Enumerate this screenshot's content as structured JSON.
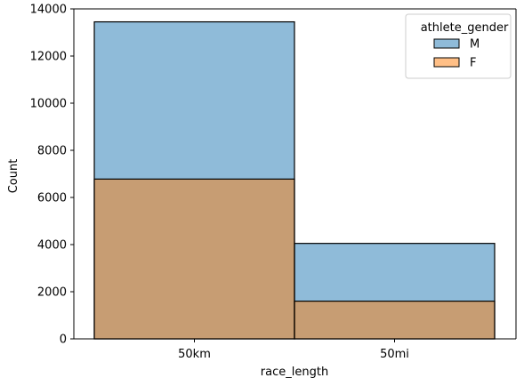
{
  "chart_data": {
    "type": "bar",
    "stacking": "overlay",
    "categories": [
      "50km",
      "50mi"
    ],
    "series": [
      {
        "name": "M",
        "values": [
          13450,
          4050
        ],
        "color": "#1f77b4"
      },
      {
        "name": "F",
        "values": [
          6780,
          1600
        ],
        "color": "#ff7f0e"
      }
    ],
    "title": "",
    "xlabel": "race_length",
    "ylabel": "Count",
    "ylim": [
      0,
      14000
    ],
    "yticks": [
      0,
      2000,
      4000,
      6000,
      8000,
      10000,
      12000,
      14000
    ],
    "grid": false,
    "legend": {
      "title": "athlete_gender",
      "location": "top-right"
    }
  }
}
